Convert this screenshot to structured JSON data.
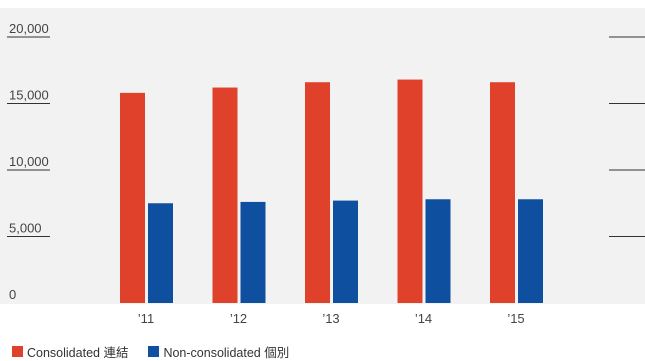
{
  "chart_data": {
    "type": "bar",
    "categories": [
      "’11",
      "’12",
      "’13",
      "’14",
      "’15"
    ],
    "series": [
      {
        "name": "Consolidated 連結",
        "values": [
          15800,
          16200,
          16600,
          16800,
          16600
        ],
        "color": "#e0412a"
      },
      {
        "name": "Non-consolidated 個別",
        "values": [
          7500,
          7600,
          7700,
          7800,
          7800
        ],
        "color": "#0f4fa0"
      }
    ],
    "y_ticks": [
      "0",
      "5,000",
      "10,000",
      "15,000",
      "20,000"
    ],
    "ylim": [
      0,
      20000
    ],
    "title": "",
    "xlabel": "",
    "ylabel": "",
    "grid": false,
    "legend_position": "bottom-left"
  },
  "colors": {
    "plot_background": "#f2f2f2",
    "rule": "#333333"
  }
}
